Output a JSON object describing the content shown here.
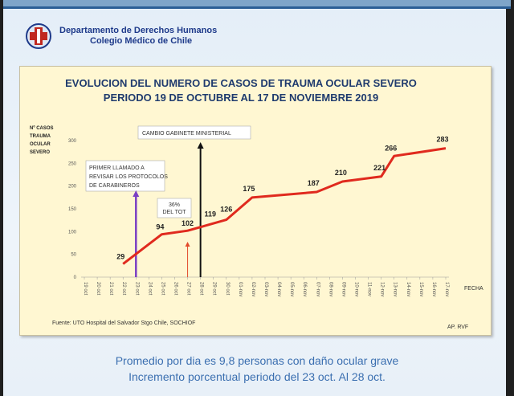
{
  "header": {
    "org_line1": "Departamento de Derechos Humanos",
    "org_line2": "Colegio Médico de Chile"
  },
  "chart_data": {
    "type": "line",
    "title": "EVOLUCION DEL NUMERO DE CASOS DE TRAUMA OCULAR SEVERO",
    "subtitle": "PERIODO 19 DE OCTUBRE AL 17 DE NOVIEMBRE 2019",
    "ylabel": [
      "Nº CASOS",
      "TRAUMA",
      "OCULAR",
      "SEVERO"
    ],
    "xlabel": "FECHA",
    "ylim": [
      0,
      300
    ],
    "yticks": [
      0,
      50,
      100,
      150,
      200,
      250,
      300
    ],
    "categories": [
      "19 oct",
      "20 oct",
      "21 oct",
      "22 oct",
      "23 oct",
      "24 oct",
      "25 oct",
      "26 oct",
      "27 oct",
      "28 oct",
      "29 oct",
      "30 oct",
      "01-nov",
      "02-nov",
      "03-nov",
      "04-nov",
      "05-nov",
      "06-nov",
      "07-nov",
      "08-nov",
      "09-nov",
      "10-nov",
      "11-nov",
      "12-nov",
      "13-nov",
      "14-nov",
      "15-nov",
      "16-nov",
      "17-nov"
    ],
    "series": [
      {
        "color": "#e02a1e",
        "points": [
          {
            "x": "22 oct",
            "y": 29
          },
          {
            "x": "25 oct",
            "y": 94
          },
          {
            "x": "27 oct",
            "y": 102
          },
          {
            "x": "30 oct",
            "y": 126
          },
          {
            "x": "02-nov",
            "y": 175
          },
          {
            "x": "07-nov",
            "y": 187
          },
          {
            "x": "09-nov",
            "y": 210
          },
          {
            "x": "12-nov",
            "y": 221
          },
          {
            "x": "13-nov",
            "y": 266
          },
          {
            "x": "17-nov",
            "y": 283
          }
        ]
      }
    ],
    "data_labels": [
      {
        "x": "22 oct",
        "y": 29,
        "text": "29"
      },
      {
        "x": "25 oct",
        "y": 94,
        "text": "94"
      },
      {
        "x": "27 oct",
        "y": 102,
        "text": "102"
      },
      {
        "x": "29 oct",
        "y": 119,
        "text": "119"
      },
      {
        "x": "30 oct",
        "y": 126,
        "text": "126"
      },
      {
        "x": "02-nov",
        "y": 175,
        "text": "175"
      },
      {
        "x": "07-nov",
        "y": 187,
        "text": "187"
      },
      {
        "x": "09-nov",
        "y": 210,
        "text": "210"
      },
      {
        "x": "12-nov",
        "y": 221,
        "text": "221"
      },
      {
        "x": "13-nov",
        "y": 266,
        "text": "266"
      },
      {
        "x": "17-nov",
        "y": 283,
        "text": "283"
      }
    ],
    "annotations": [
      {
        "text": [
          "PRIMER LLAMADO A",
          "REVISAR LOS PROTOCOLOS",
          "DE CARABINEROS"
        ],
        "x": "23 oct",
        "arrow_color": "#7b3fc4"
      },
      {
        "text": [
          "CAMBIO GABINETE MINISTERIAL"
        ],
        "x": "28 oct",
        "arrow_color": "#111111"
      },
      {
        "text": [
          "36%",
          "DEL TOT"
        ],
        "x": "27 oct",
        "arrow_color": "#e24a2a"
      }
    ],
    "grid": false,
    "source": "Fuente: UTO Hospital del Salvador Stgo Chile, SOCHIOF",
    "credit": "AP. RVF"
  },
  "footer": {
    "line1": "Promedio por dia es 9,8 personas con daño ocular grave",
    "line2": "Incremento porcentual periodo del 23 oct. Al 28 oct."
  }
}
